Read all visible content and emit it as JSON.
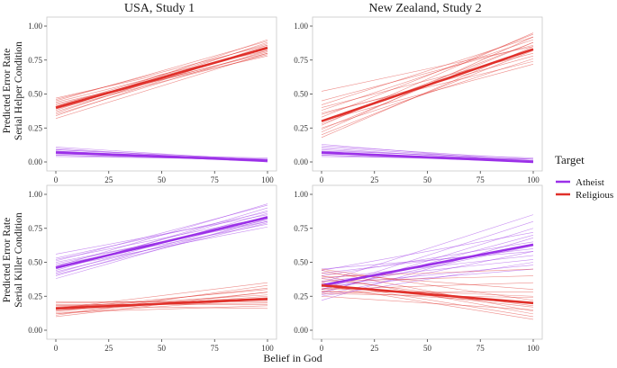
{
  "chart_data": {
    "type": "line",
    "xlabel": "Belief in God",
    "xlim": [
      0,
      100
    ],
    "ylim": [
      0,
      1
    ],
    "x_ticks": [
      "0",
      "25",
      "50",
      "75",
      "100"
    ],
    "y_ticks": [
      "0.00",
      "0.25",
      "0.50",
      "0.75",
      "1.00"
    ],
    "columns": [
      "USA, Study 1",
      "New Zealand, Study 2"
    ],
    "row_labels": [
      [
        "Predicted Error Rate",
        "Serial Helper Condition"
      ],
      [
        "Predicted Error Rate",
        "Serial Killer Condition"
      ]
    ],
    "legend": {
      "title": "Target",
      "position": "right",
      "entries": [
        {
          "name": "Atheist",
          "color": "#9b30e8"
        },
        {
          "name": "Religious",
          "color": "#e0302a"
        }
      ]
    },
    "panels": [
      {
        "column": "USA, Study 1",
        "row": "Serial Helper Condition",
        "series": [
          {
            "name": "Religious",
            "x": [
              0,
              100
            ],
            "values": [
              0.4,
              0.84
            ],
            "draws": [
              [
                0.37,
                0.85
              ],
              [
                0.42,
                0.8
              ],
              [
                0.36,
                0.88
              ],
              [
                0.44,
                0.83
              ],
              [
                0.39,
                0.79
              ],
              [
                0.41,
                0.87
              ],
              [
                0.35,
                0.82
              ],
              [
                0.46,
                0.86
              ],
              [
                0.38,
                0.9
              ],
              [
                0.43,
                0.78
              ],
              [
                0.4,
                0.81
              ],
              [
                0.34,
                0.86
              ],
              [
                0.45,
                0.89
              ],
              [
                0.39,
                0.84
              ],
              [
                0.47,
                0.82
              ],
              [
                0.32,
                0.8
              ]
            ]
          },
          {
            "name": "Atheist",
            "x": [
              0,
              100
            ],
            "values": [
              0.07,
              0.01
            ],
            "draws": [
              [
                0.09,
                0.01
              ],
              [
                0.05,
                0.02
              ],
              [
                0.1,
                0.0
              ],
              [
                0.06,
                0.03
              ],
              [
                0.08,
                0.01
              ],
              [
                0.04,
                0.02
              ],
              [
                0.11,
                0.01
              ],
              [
                0.07,
                0.0
              ],
              [
                0.05,
                0.01
              ],
              [
                0.09,
                0.02
              ],
              [
                0.06,
                0.01
              ],
              [
                0.08,
                0.0
              ]
            ]
          }
        ]
      },
      {
        "column": "New Zealand, Study 2",
        "row": "Serial Helper Condition",
        "series": [
          {
            "name": "Religious",
            "x": [
              0,
              100
            ],
            "values": [
              0.3,
              0.83
            ],
            "draws": [
              [
                0.22,
                0.92
              ],
              [
                0.35,
                0.78
              ],
              [
                0.28,
                0.88
              ],
              [
                0.4,
                0.8
              ],
              [
                0.18,
                0.85
              ],
              [
                0.33,
                0.94
              ],
              [
                0.25,
                0.76
              ],
              [
                0.45,
                0.86
              ],
              [
                0.3,
                0.72
              ],
              [
                0.38,
                0.9
              ],
              [
                0.2,
                0.82
              ],
              [
                0.52,
                0.85
              ],
              [
                0.27,
                0.95
              ],
              [
                0.36,
                0.74
              ],
              [
                0.24,
                0.88
              ],
              [
                0.42,
                0.92
              ]
            ]
          },
          {
            "name": "Atheist",
            "x": [
              0,
              100
            ],
            "values": [
              0.07,
              0.0
            ],
            "draws": [
              [
                0.1,
                0.0
              ],
              [
                0.05,
                0.01
              ],
              [
                0.12,
                0.02
              ],
              [
                0.06,
                0.0
              ],
              [
                0.09,
                0.01
              ],
              [
                0.04,
                0.02
              ],
              [
                0.13,
                0.0
              ],
              [
                0.07,
                0.01
              ],
              [
                0.08,
                0.03
              ],
              [
                0.05,
                0.0
              ],
              [
                0.11,
                0.01
              ],
              [
                0.06,
                0.02
              ]
            ]
          }
        ]
      },
      {
        "column": "USA, Study 1",
        "row": "Serial Killer Condition",
        "series": [
          {
            "name": "Atheist",
            "x": [
              0,
              100
            ],
            "values": [
              0.46,
              0.83
            ],
            "draws": [
              [
                0.42,
                0.86
              ],
              [
                0.5,
                0.8
              ],
              [
                0.44,
                0.9
              ],
              [
                0.48,
                0.78
              ],
              [
                0.4,
                0.84
              ],
              [
                0.53,
                0.87
              ],
              [
                0.46,
                0.76
              ],
              [
                0.38,
                0.82
              ],
              [
                0.51,
                0.92
              ],
              [
                0.43,
                0.8
              ],
              [
                0.56,
                0.85
              ],
              [
                0.45,
                0.88
              ],
              [
                0.49,
                0.81
              ],
              [
                0.41,
                0.79
              ],
              [
                0.47,
                0.93
              ],
              [
                0.52,
                0.83
              ]
            ]
          },
          {
            "name": "Religious",
            "x": [
              0,
              100
            ],
            "values": [
              0.16,
              0.23
            ],
            "draws": [
              [
                0.14,
                0.25
              ],
              [
                0.18,
                0.2
              ],
              [
                0.12,
                0.28
              ],
              [
                0.16,
                0.3
              ],
              [
                0.2,
                0.22
              ],
              [
                0.13,
                0.18
              ],
              [
                0.17,
                0.26
              ],
              [
                0.11,
                0.33
              ],
              [
                0.19,
                0.19
              ],
              [
                0.15,
                0.24
              ],
              [
                0.1,
                0.28
              ],
              [
                0.21,
                0.21
              ],
              [
                0.14,
                0.31
              ],
              [
                0.18,
                0.16
              ],
              [
                0.12,
                0.23
              ],
              [
                0.16,
                0.35
              ]
            ]
          }
        ]
      },
      {
        "column": "New Zealand, Study 2",
        "row": "Serial Killer Condition",
        "series": [
          {
            "name": "Atheist",
            "x": [
              0,
              100
            ],
            "values": [
              0.33,
              0.63
            ],
            "draws": [
              [
                0.28,
                0.7
              ],
              [
                0.38,
                0.55
              ],
              [
                0.3,
                0.8
              ],
              [
                0.42,
                0.6
              ],
              [
                0.25,
                0.5
              ],
              [
                0.35,
                0.85
              ],
              [
                0.45,
                0.58
              ],
              [
                0.32,
                0.45
              ],
              [
                0.27,
                0.75
              ],
              [
                0.4,
                0.65
              ],
              [
                0.22,
                0.68
              ],
              [
                0.36,
                0.52
              ],
              [
                0.3,
                0.62
              ],
              [
                0.44,
                0.72
              ],
              [
                0.33,
                0.48
              ],
              [
                0.26,
                0.58
              ]
            ]
          },
          {
            "name": "Religious",
            "x": [
              0,
              100
            ],
            "values": [
              0.33,
              0.2
            ],
            "draws": [
              [
                0.4,
                0.12
              ],
              [
                0.28,
                0.28
              ],
              [
                0.35,
                0.1
              ],
              [
                0.45,
                0.22
              ],
              [
                0.3,
                0.35
              ],
              [
                0.38,
                0.18
              ],
              [
                0.25,
                0.15
              ],
              [
                0.42,
                0.3
              ],
              [
                0.33,
                0.08
              ],
              [
                0.36,
                0.4
              ],
              [
                0.29,
                0.2
              ],
              [
                0.44,
                0.14
              ],
              [
                0.31,
                0.25
              ],
              [
                0.39,
                0.45
              ],
              [
                0.27,
                0.24
              ],
              [
                0.34,
                0.17
              ]
            ]
          }
        ]
      }
    ]
  }
}
